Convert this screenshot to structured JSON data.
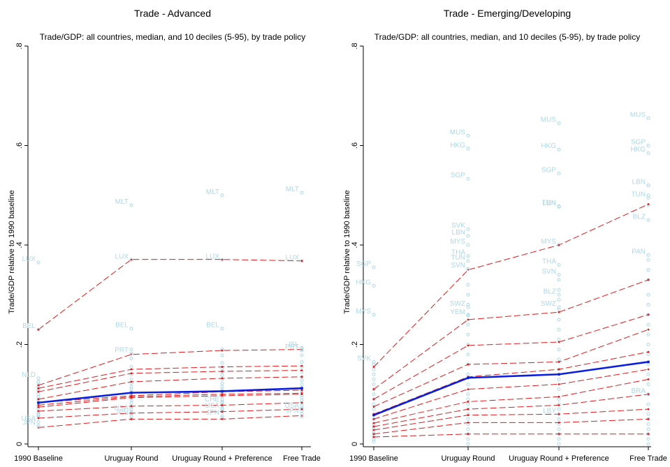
{
  "colors": {
    "points": "#add8e6",
    "deciles": "#e31a1c",
    "median": "#0a1fe0",
    "axis": "#000000"
  },
  "chart_data": [
    {
      "type": "line",
      "title": "Trade - Advanced",
      "subtitle": "Trade/GDP: all countries, median, and 10 deciles (5-95), by trade policy",
      "xlabel": "",
      "ylabel": "Trade/GDP relative to 1990 baseline",
      "categories": [
        "1990 Baseline",
        "Uruguay Round",
        "Uruguay Round + Preference",
        "Free Trade"
      ],
      "y_ticks": [
        "0",
        ".2",
        ".4",
        ".6",
        ".8"
      ],
      "ylim": [
        0,
        0.8
      ],
      "median": [
        0.083,
        0.103,
        0.106,
        0.112
      ],
      "deciles": [
        [
          0.23,
          0.371,
          0.371,
          0.368
        ],
        [
          0.118,
          0.18,
          0.188,
          0.19
        ],
        [
          0.112,
          0.15,
          0.155,
          0.157
        ],
        [
          0.105,
          0.142,
          0.146,
          0.148
        ],
        [
          0.09,
          0.125,
          0.132,
          0.135
        ],
        [
          0.083,
          0.097,
          0.105,
          0.108
        ],
        [
          0.078,
          0.095,
          0.1,
          0.102
        ],
        [
          0.074,
          0.093,
          0.097,
          0.1
        ],
        [
          0.066,
          0.076,
          0.078,
          0.083
        ],
        [
          0.052,
          0.062,
          0.065,
          0.07
        ],
        [
          0.033,
          0.05,
          0.05,
          0.057
        ]
      ],
      "country_points": [
        {
          "label": "LUX",
          "values": [
            0.365,
            0.37,
            0.37,
            0.368
          ]
        },
        {
          "label": "MLT",
          "values": [
            null,
            0.48,
            0.5,
            0.505
          ]
        },
        {
          "label": "BEL",
          "values": [
            0.23,
            0.232,
            0.232,
            null
          ]
        },
        {
          "label": "PRT",
          "values": [
            null,
            0.182,
            null,
            0.188
          ]
        },
        {
          "label": "ISL",
          "values": [
            null,
            null,
            null,
            0.193
          ]
        },
        {
          "label": "NLD",
          "values": [
            0.132,
            null,
            null,
            null
          ]
        },
        {
          "label": "CHE",
          "values": [
            null,
            null,
            0.083,
            null
          ]
        },
        {
          "label": "USA",
          "values": [
            0.044,
            0.065,
            0.07,
            0.07
          ]
        },
        {
          "label": "JPN",
          "values": [
            0.036,
            0.056,
            0.056,
            0.06
          ]
        }
      ],
      "extra_points": [
        [
          0.125,
          0.12,
          0.115,
          0.11,
          0.107,
          0.1,
          0.095,
          0.09,
          0.087,
          0.083,
          0.079,
          0.075,
          0.071,
          0.065,
          0.06,
          0.058,
          0.055
        ],
        [
          0.19,
          0.172,
          0.155,
          0.14,
          0.13,
          0.122,
          0.115,
          0.11,
          0.105,
          0.1,
          0.097,
          0.092,
          0.088,
          0.082,
          0.075,
          0.07,
          0.062,
          0.05
        ],
        [
          0.19,
          0.178,
          0.163,
          0.152,
          0.145,
          0.138,
          0.13,
          0.122,
          0.115,
          0.11,
          0.105,
          0.1,
          0.096,
          0.09,
          0.085,
          0.078,
          0.072,
          0.065,
          0.052
        ],
        [
          0.192,
          0.178,
          0.165,
          0.155,
          0.145,
          0.135,
          0.128,
          0.12,
          0.113,
          0.108,
          0.103,
          0.098,
          0.093,
          0.088,
          0.083,
          0.077,
          0.072,
          0.066,
          0.055
        ]
      ]
    },
    {
      "type": "line",
      "title": "Trade - Emerging/Developing",
      "subtitle": "Trade/GDP: all countries, median, and 10 deciles (5-95), by trade policy",
      "xlabel": "",
      "ylabel": "Trade/GDP relative to 1990 baseline",
      "categories": [
        "1990 Baseline",
        "Uruguay Round",
        "Uruguay Round + Preference",
        "Free Trade"
      ],
      "y_ticks": [
        "0",
        ".2",
        ".4",
        ".6",
        ".8"
      ],
      "ylim": [
        0,
        0.8
      ],
      "median": [
        0.058,
        0.133,
        0.14,
        0.165
      ],
      "deciles": [
        [
          0.155,
          0.35,
          0.4,
          0.482
        ],
        [
          0.11,
          0.25,
          0.265,
          0.33
        ],
        [
          0.09,
          0.198,
          0.205,
          0.26
        ],
        [
          0.075,
          0.16,
          0.165,
          0.23
        ],
        [
          0.06,
          0.135,
          0.15,
          0.185
        ],
        [
          0.05,
          0.11,
          0.12,
          0.15
        ],
        [
          0.042,
          0.085,
          0.095,
          0.13
        ],
        [
          0.035,
          0.07,
          0.078,
          0.1
        ],
        [
          0.028,
          0.058,
          0.06,
          0.07
        ],
        [
          0.02,
          0.043,
          0.043,
          0.05
        ],
        [
          0.014,
          0.02,
          0.02,
          0.02
        ]
      ],
      "country_points": [
        {
          "label": "MUS",
          "values": [
            null,
            0.62,
            0.645,
            0.655
          ]
        },
        {
          "label": "HKG",
          "values": [
            0.318,
            0.594,
            0.592,
            0.585
          ]
        },
        {
          "label": "SGP",
          "values": [
            0.355,
            0.533,
            0.544,
            0.6
          ]
        },
        {
          "label": "MYS",
          "values": [
            0.26,
            0.4,
            0.4,
            null
          ]
        },
        {
          "label": "SVK",
          "values": [
            null,
            0.432,
            null,
            null
          ]
        },
        {
          "label": "LBN",
          "values": [
            null,
            0.418,
            0.477,
            0.52
          ]
        },
        {
          "label": "THA",
          "values": [
            null,
            0.378,
            0.36,
            null
          ]
        },
        {
          "label": "TUN",
          "values": [
            null,
            0.368,
            0.478,
            0.495
          ]
        },
        {
          "label": "SVN",
          "values": [
            null,
            0.352,
            0.34,
            null
          ]
        },
        {
          "label": "BLZ",
          "values": [
            null,
            null,
            0.3,
            0.45
          ]
        },
        {
          "label": "YEM",
          "values": [
            null,
            0.258,
            null,
            null
          ]
        },
        {
          "label": "PAN",
          "values": [
            null,
            null,
            null,
            0.38
          ]
        },
        {
          "label": "SWZ",
          "values": [
            null,
            0.275,
            0.275,
            null
          ]
        },
        {
          "label": "SVK",
          "values": [
            0.165,
            null,
            null,
            null
          ]
        },
        {
          "label": "LBY",
          "values": [
            null,
            null,
            0.06,
            null
          ]
        },
        {
          "label": "BRA",
          "values": [
            null,
            null,
            null,
            0.1
          ]
        }
      ],
      "extra_points": [
        [
          0.16,
          0.15,
          0.14,
          0.13,
          0.12,
          0.11,
          0.1,
          0.09,
          0.08,
          0.07,
          0.06,
          0.05,
          0.04,
          0.035,
          0.03,
          0.025,
          0.02,
          0.015,
          0.01,
          0.005
        ],
        [
          0.32,
          0.3,
          0.28,
          0.26,
          0.24,
          0.22,
          0.2,
          0.18,
          0.16,
          0.14,
          0.12,
          0.1,
          0.09,
          0.08,
          0.07,
          0.06,
          0.05,
          0.04,
          0.03,
          0.02,
          0.01,
          0.0
        ],
        [
          0.4,
          0.33,
          0.31,
          0.29,
          0.27,
          0.25,
          0.23,
          0.21,
          0.19,
          0.17,
          0.15,
          0.13,
          0.11,
          0.09,
          0.08,
          0.07,
          0.06,
          0.05,
          0.04,
          0.03,
          0.02,
          0.01,
          0.0
        ],
        [
          0.52,
          0.5,
          0.48,
          0.37,
          0.35,
          0.33,
          0.3,
          0.28,
          0.26,
          0.24,
          0.22,
          0.2,
          0.18,
          0.16,
          0.14,
          0.12,
          0.1,
          0.08,
          0.06,
          0.05,
          0.04,
          0.03,
          0.02,
          0.01,
          0.0
        ]
      ]
    }
  ]
}
